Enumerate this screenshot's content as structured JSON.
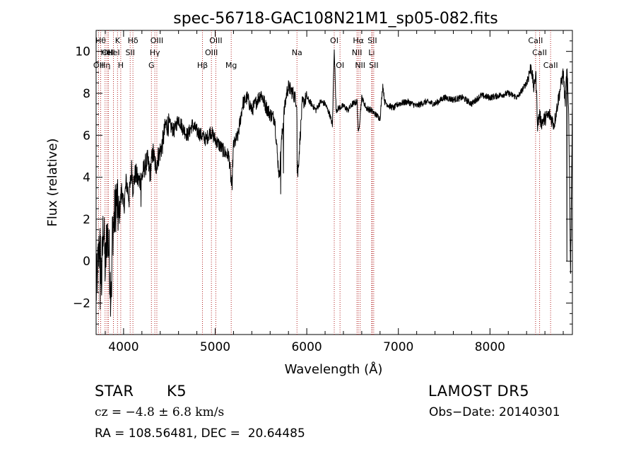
{
  "chart_data": {
    "type": "line",
    "title": "spec-56718-GAC108N21M1_sp05-082.fits",
    "xlabel": "Wavelength (Å)",
    "ylabel": "Flux (relative)",
    "xlim": [
      3700,
      8900
    ],
    "ylim": [
      -3.5,
      11
    ],
    "xticks": [
      4000,
      5000,
      6000,
      7000,
      8000
    ],
    "yticks": [
      -2,
      0,
      2,
      4,
      6,
      8,
      10
    ],
    "grid": false,
    "series": [
      {
        "color": "#000000",
        "x": [
          3700,
          3740,
          3760,
          3780,
          3800,
          3820,
          3840,
          3860,
          3880,
          3900,
          3920,
          3950,
          3980,
          4000,
          4030,
          4060,
          4090,
          4100,
          4130,
          4160,
          4200,
          4230,
          4260,
          4290,
          4320,
          4350,
          4380,
          4420,
          4460,
          4500,
          4550,
          4600,
          4650,
          4700,
          4750,
          4800,
          4850,
          4900,
          4950,
          5000,
          5050,
          5100,
          5150,
          5170,
          5180,
          5200,
          5250,
          5300,
          5350,
          5400,
          5450,
          5500,
          5550,
          5600,
          5650,
          5680,
          5700,
          5720,
          5750,
          5780,
          5800,
          5850,
          5890,
          5900,
          5950,
          6000,
          6050,
          6100,
          6150,
          6200,
          6250,
          6280,
          6300,
          6320,
          6350,
          6400,
          6450,
          6500,
          6550,
          6563,
          6600,
          6650,
          6700,
          6750,
          6800,
          6830,
          6850,
          6900,
          6950,
          7000,
          7100,
          7200,
          7300,
          7400,
          7500,
          7600,
          7700,
          7800,
          7900,
          8000,
          8100,
          8200,
          8300,
          8400,
          8450,
          8480,
          8500,
          8520,
          8540,
          8560,
          8600,
          8650,
          8700,
          8750,
          8800,
          8820,
          8840,
          8860,
          8880,
          8900
        ],
        "y": [
          -1.5,
          1.0,
          -1.0,
          2.0,
          -0.5,
          1.5,
          0.5,
          -1.5,
          1.5,
          2.0,
          3.0,
          2.0,
          3.5,
          2.5,
          3.8,
          3.0,
          4.5,
          3.5,
          4.2,
          3.8,
          4.0,
          4.5,
          4.8,
          4.2,
          5.2,
          4.5,
          5.0,
          5.5,
          6.5,
          6.5,
          6.2,
          6.8,
          6.3,
          6.0,
          6.5,
          6.2,
          6.0,
          5.8,
          6.2,
          5.8,
          5.5,
          5.2,
          5.0,
          4.0,
          3.5,
          5.5,
          6.0,
          7.5,
          7.8,
          7.2,
          7.6,
          8.0,
          7.4,
          7.0,
          6.8,
          5.0,
          4.0,
          5.5,
          7.0,
          8.0,
          8.3,
          8.0,
          7.6,
          4.0,
          7.5,
          7.8,
          7.5,
          7.2,
          7.6,
          7.5,
          7.0,
          6.5,
          10.2,
          7.2,
          7.3,
          7.4,
          7.2,
          7.5,
          7.6,
          6.0,
          7.8,
          7.3,
          7.2,
          7.0,
          6.8,
          8.4,
          7.6,
          7.4,
          7.3,
          7.5,
          7.6,
          7.4,
          7.6,
          7.5,
          7.8,
          7.7,
          7.8,
          7.5,
          7.9,
          7.8,
          7.9,
          8.0,
          7.8,
          8.5,
          9.3,
          8.2,
          9.0,
          6.5,
          7.0,
          6.6,
          6.8,
          7.0,
          6.5,
          7.8,
          9.0,
          7.5,
          9.2,
          7.0,
          -0.5,
          7.5
        ],
        "min_points": [
          [
            3745,
            -2.3
          ],
          [
            3868,
            -1.7
          ],
          [
            4190,
            2.6
          ],
          [
            5185,
            3.4
          ],
          [
            5715,
            3.2
          ],
          [
            5745,
            4.2
          ],
          [
            5895,
            4.2
          ],
          [
            6280,
            6.4
          ],
          [
            6563,
            6.2
          ],
          [
            8840,
            0.0
          ]
        ]
      }
    ],
    "lines": [
      {
        "wavelength": 3727,
        "label": "OII",
        "row": 3
      },
      {
        "wavelength": 3750,
        "label": "Hθ",
        "row": 1
      },
      {
        "wavelength": 3798,
        "label": "Hη",
        "row": 3
      },
      {
        "wavelength": 3820,
        "label": "HeI",
        "row": 2
      },
      {
        "wavelength": 3835,
        "label": "OIII",
        "row": 2
      },
      {
        "wavelength": 3889,
        "label": "HeI",
        "row": 2
      },
      {
        "wavelength": 3934,
        "label": "K",
        "row": 1
      },
      {
        "wavelength": 3969,
        "label": "H",
        "row": 3
      },
      {
        "wavelength": 4072,
        "label": "SII",
        "row": 2
      },
      {
        "wavelength": 4102,
        "label": "Hδ",
        "row": 1
      },
      {
        "wavelength": 4304,
        "label": "G",
        "row": 3
      },
      {
        "wavelength": 4341,
        "label": "Hγ",
        "row": 2
      },
      {
        "wavelength": 4363,
        "label": "OIII",
        "row": 1
      },
      {
        "wavelength": 4861,
        "label": "Hβ",
        "row": 3
      },
      {
        "wavelength": 4959,
        "label": "OIII",
        "row": 2
      },
      {
        "wavelength": 5007,
        "label": "OIII",
        "row": 1
      },
      {
        "wavelength": 5175,
        "label": "Mg",
        "row": 3
      },
      {
        "wavelength": 5893,
        "label": "Na",
        "row": 2
      },
      {
        "wavelength": 6300,
        "label": "OI",
        "row": 1
      },
      {
        "wavelength": 6363,
        "label": "OI",
        "row": 3
      },
      {
        "wavelength": 6548,
        "label": "NII",
        "row": 2
      },
      {
        "wavelength": 6563,
        "label": "Hα",
        "row": 1
      },
      {
        "wavelength": 6583,
        "label": "NII",
        "row": 3
      },
      {
        "wavelength": 6708,
        "label": "Li",
        "row": 2
      },
      {
        "wavelength": 6716,
        "label": "SII",
        "row": 1
      },
      {
        "wavelength": 6731,
        "label": "SII",
        "row": 3
      },
      {
        "wavelength": 8498,
        "label": "CaII",
        "row": 1
      },
      {
        "wavelength": 8542,
        "label": "CaII",
        "row": 2
      },
      {
        "wavelength": 8662,
        "label": "CaII",
        "row": 3
      }
    ],
    "line_color": "#b22222"
  },
  "info": {
    "class": "STAR",
    "subclass": "K5",
    "survey": "LAMOST DR5",
    "cz": "cz = −4.8 ± 6.8 km/s",
    "obs_date": "Obs−Date: 20140301",
    "radec": "RA = 108.56481, DEC =  20.64485"
  }
}
